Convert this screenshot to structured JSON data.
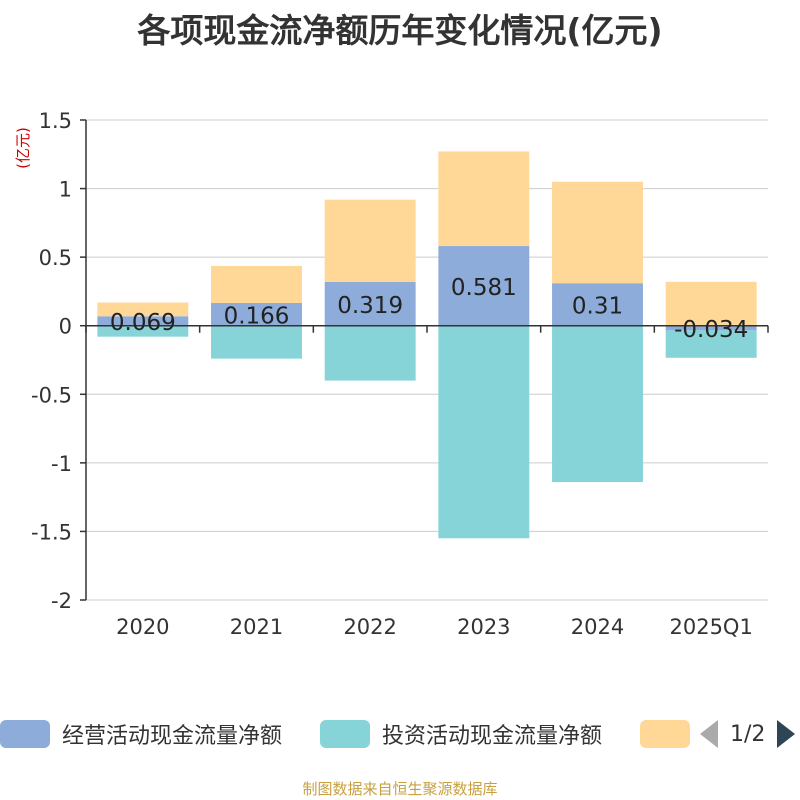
{
  "chart_data": {
    "type": "bar",
    "title": "各项现金流净额历年变化情况(亿元)",
    "ylabel": "(亿元)",
    "categories": [
      "2020",
      "2021",
      "2022",
      "2023",
      "2024",
      "2025Q1"
    ],
    "ylim": [
      -2,
      1.5
    ],
    "yticks": [
      1.5,
      1,
      0.5,
      0,
      -0.5,
      -1,
      -1.5,
      -2
    ],
    "ytick_labels": [
      "1.5",
      "1",
      "0.5",
      "0",
      "-0.5",
      "-1",
      "-1.5",
      "-2"
    ],
    "grid": true,
    "legend_position": "bottom",
    "series": [
      {
        "name": "经营活动现金流量净额",
        "color": "#8eacd9",
        "values": [
          0.069,
          0.166,
          0.319,
          0.581,
          0.31,
          -0.034
        ],
        "labels": [
          "0.069",
          "0.166",
          "0.319",
          "0.581",
          "0.31",
          "-0.034"
        ]
      },
      {
        "name": "投资活动现金流量净额",
        "color": "#86d4d8",
        "values": [
          -0.08,
          -0.24,
          -0.4,
          -1.55,
          -1.14,
          -0.2
        ]
      },
      {
        "name": "",
        "color": "#ffd898",
        "values": [
          0.1,
          0.27,
          0.6,
          0.69,
          0.74,
          0.32
        ]
      }
    ]
  },
  "legend": {
    "page": "1/2"
  },
  "source_note": "制图数据来自恒生聚源数据库"
}
